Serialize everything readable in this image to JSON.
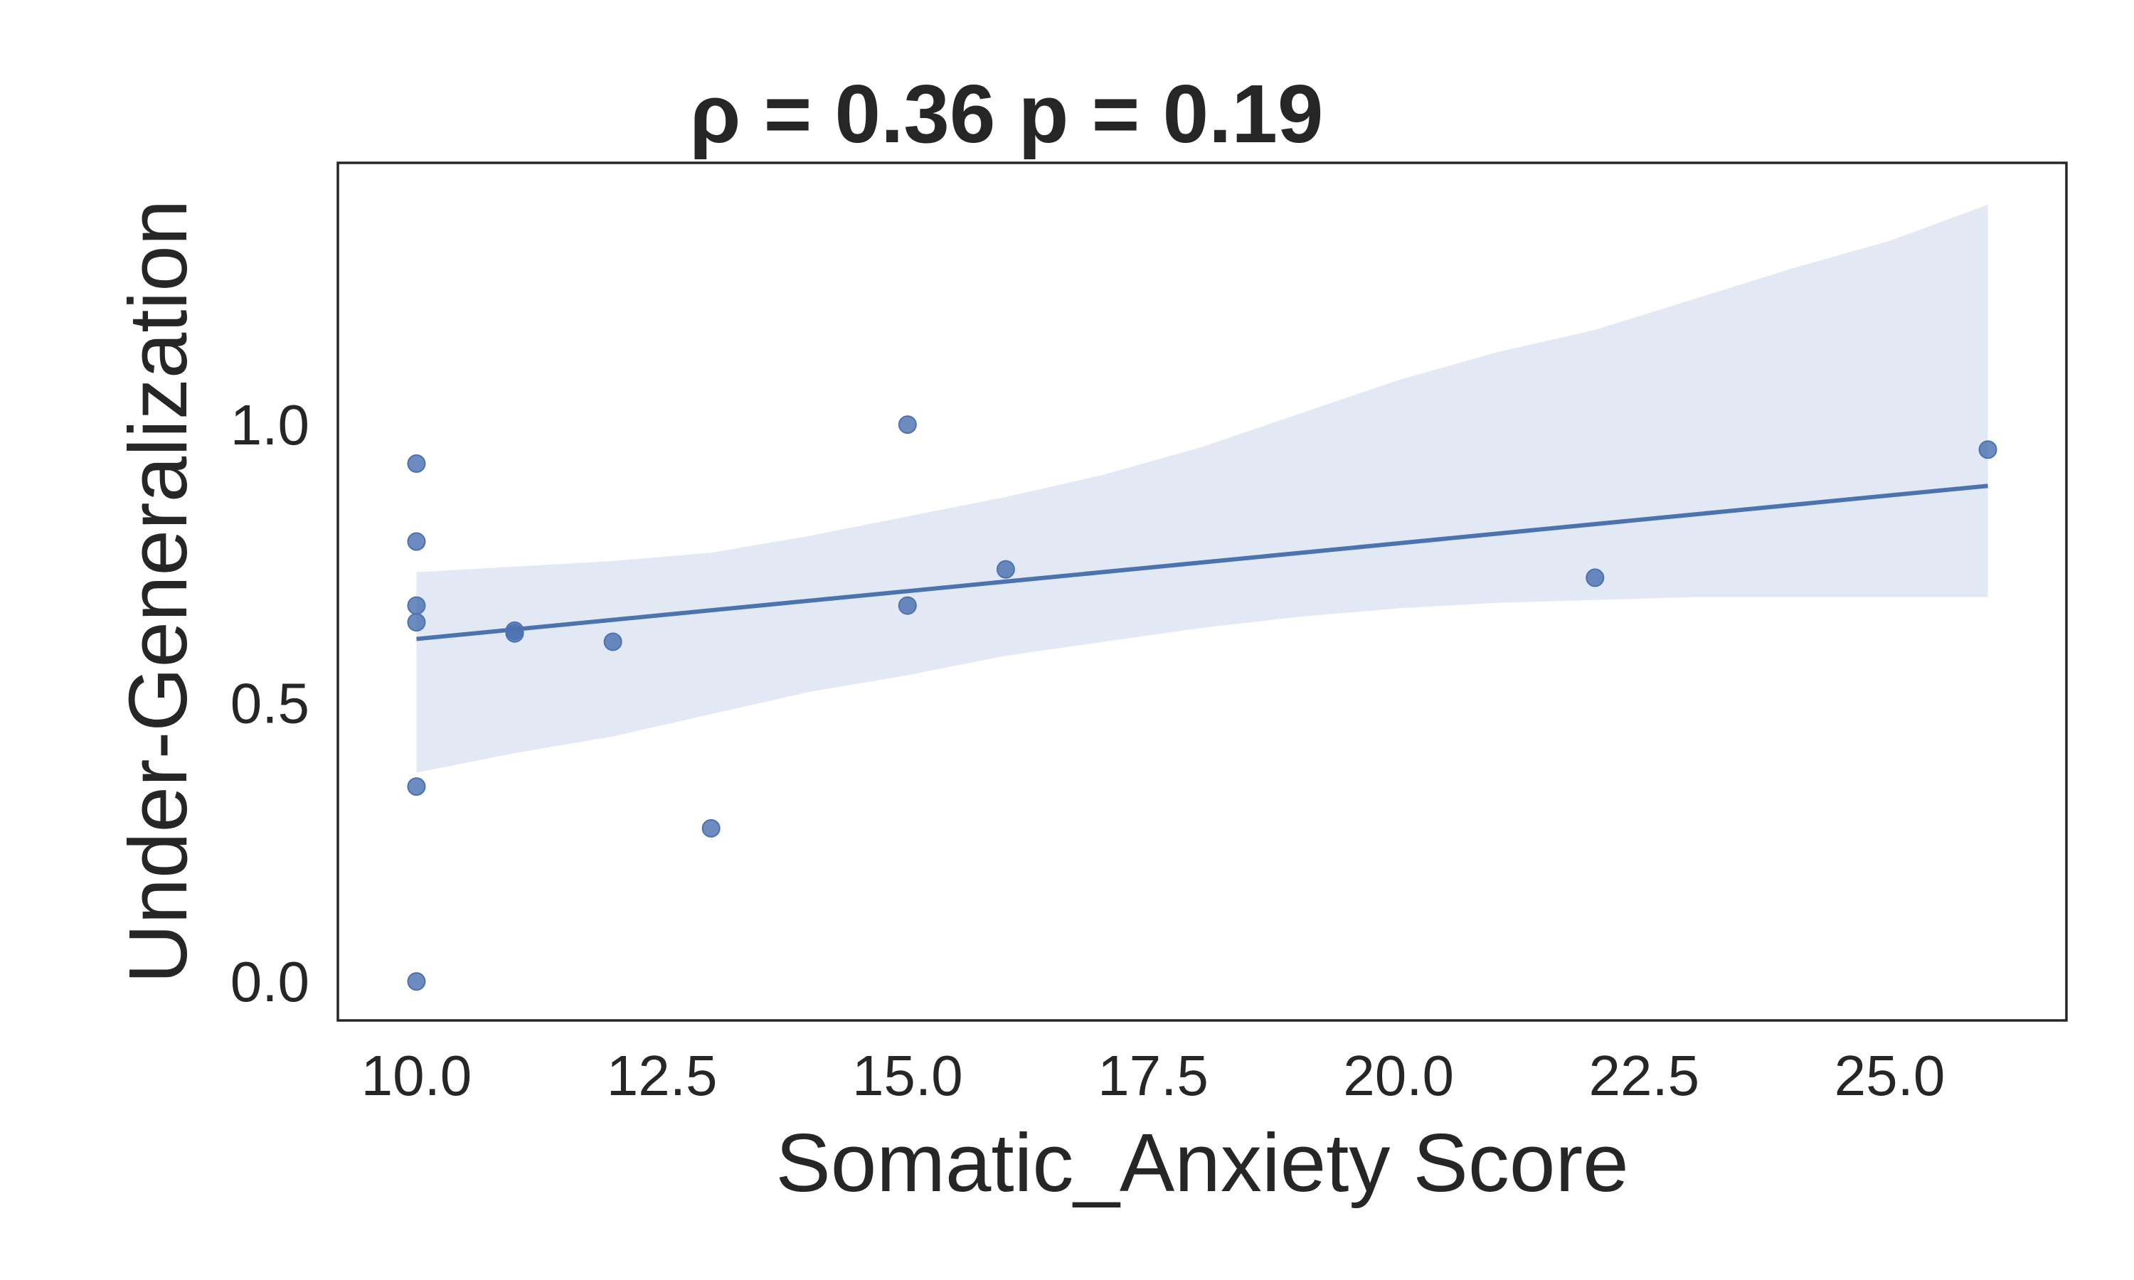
{
  "chart_data": {
    "type": "scatter",
    "title": "ρ = 0.36 p = 0.19",
    "xlabel": "Somatic_Anxiety Score",
    "ylabel": "Under-Generalization",
    "xlim": [
      9.2,
      26.8
    ],
    "ylim": [
      -0.07,
      1.47
    ],
    "xticks": [
      10.0,
      12.5,
      15.0,
      17.5,
      20.0,
      22.5,
      25.0
    ],
    "xtick_labels": [
      "10.0",
      "12.5",
      "15.0",
      "17.5",
      "20.0",
      "22.5",
      "25.0"
    ],
    "yticks": [
      0.0,
      0.5,
      1.0
    ],
    "ytick_labels": [
      "0.0",
      "0.5",
      "1.0"
    ],
    "grid": false,
    "colors": {
      "points": "#4c72b0",
      "line": "#4c72b0",
      "band": "#e3e9f4",
      "axes": "#262626"
    },
    "points": [
      {
        "x": 10,
        "y": 0.93
      },
      {
        "x": 10,
        "y": 0.79
      },
      {
        "x": 10,
        "y": 0.675
      },
      {
        "x": 10,
        "y": 0.645
      },
      {
        "x": 10,
        "y": 0.35
      },
      {
        "x": 10,
        "y": 0.0
      },
      {
        "x": 11,
        "y": 0.63
      },
      {
        "x": 11,
        "y": 0.625
      },
      {
        "x": 12,
        "y": 0.61
      },
      {
        "x": 13,
        "y": 0.275
      },
      {
        "x": 15,
        "y": 1.0
      },
      {
        "x": 15,
        "y": 0.675
      },
      {
        "x": 16,
        "y": 0.74
      },
      {
        "x": 22,
        "y": 0.725
      },
      {
        "x": 26,
        "y": 0.955
      }
    ],
    "regression": {
      "x": [
        10,
        26
      ],
      "y": [
        0.615,
        0.89
      ]
    },
    "confidence_band": {
      "x": [
        10,
        11,
        12,
        13,
        14,
        15,
        16,
        17,
        18,
        19,
        20,
        21,
        22,
        23,
        24,
        25,
        26
      ],
      "lower": [
        0.375,
        0.41,
        0.44,
        0.48,
        0.52,
        0.55,
        0.585,
        0.61,
        0.635,
        0.655,
        0.67,
        0.68,
        0.685,
        0.69,
        0.69,
        0.69,
        0.69
      ],
      "upper": [
        0.735,
        0.745,
        0.755,
        0.77,
        0.8,
        0.835,
        0.87,
        0.91,
        0.96,
        1.02,
        1.08,
        1.13,
        1.17,
        1.225,
        1.28,
        1.33,
        1.395
      ]
    }
  }
}
